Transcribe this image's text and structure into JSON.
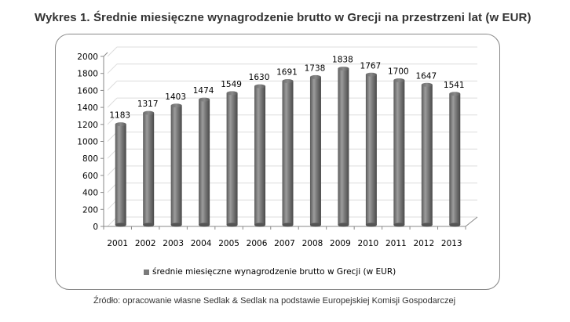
{
  "title": "Wykres 1. Średnie miesięczne wynagrodzenie brutto w Grecji na przestrzeni lat (w EUR)",
  "source": "Źródło: opracowanie własne Sedlak & Sedlak na podstawie Europejskiej Komisji Gospodarczej",
  "legend": {
    "label": "średnie miesięczne wynagrodzenie brutto w Grecji (w EUR)",
    "color": "#7a7a7a"
  },
  "colors": {
    "bar": "#6f6f6f",
    "bar_light": "#9a9a9a",
    "bar_dark": "#4a4a4a",
    "grid": "#dcdcdc",
    "axis": "#888888",
    "text": "#000000"
  },
  "chart_data": {
    "type": "bar",
    "style": "3d-cylinder",
    "title": "Wykres 1. Średnie miesięczne wynagrodzenie brutto w Grecji na przestrzeni lat (w EUR)",
    "xlabel": "",
    "ylabel": "",
    "categories": [
      "2001",
      "2002",
      "2003",
      "2004",
      "2005",
      "2006",
      "2007",
      "2008",
      "2009",
      "2010",
      "2011",
      "2012",
      "2013"
    ],
    "series": [
      {
        "name": "średnie miesięczne wynagrodzenie brutto w Grecji (w EUR)",
        "values": [
          1183,
          1317,
          1403,
          1474,
          1549,
          1630,
          1691,
          1738,
          1838,
          1767,
          1700,
          1647,
          1541
        ]
      }
    ],
    "ylim": [
      0,
      2000
    ],
    "yticks": [
      0,
      200,
      400,
      600,
      800,
      1000,
      1200,
      1400,
      1600,
      1800,
      2000
    ],
    "grid": true,
    "data_labels": true,
    "legend_position": "bottom"
  }
}
